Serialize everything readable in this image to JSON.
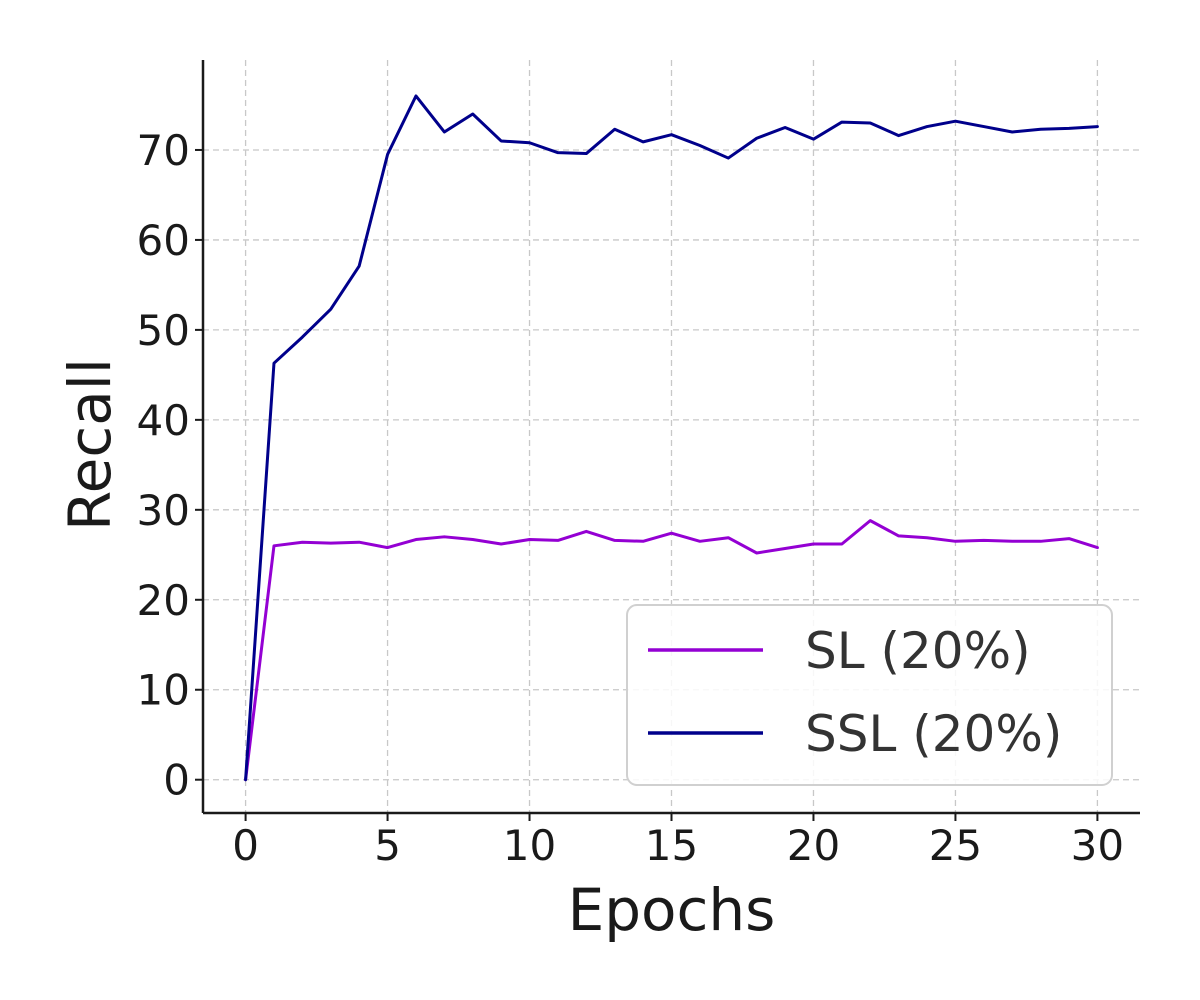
{
  "chart_data": {
    "type": "line",
    "title": "",
    "xlabel": "Epochs",
    "ylabel": "Recall",
    "xlim": [
      -1.5,
      31.5
    ],
    "ylim": [
      -3.7,
      80
    ],
    "x_ticks": [
      0,
      5,
      10,
      15,
      20,
      25,
      30
    ],
    "y_ticks": [
      0,
      10,
      20,
      30,
      40,
      50,
      60,
      70
    ],
    "grid": true,
    "legend_position": "lower-right",
    "x": [
      0,
      1,
      2,
      3,
      4,
      5,
      6,
      7,
      8,
      9,
      10,
      11,
      12,
      13,
      14,
      15,
      16,
      17,
      18,
      19,
      20,
      21,
      22,
      23,
      24,
      25,
      26,
      27,
      28,
      29,
      30
    ],
    "series": [
      {
        "name": "SL (20%)",
        "color": "#9400d3",
        "values": [
          0,
          26.0,
          26.4,
          26.3,
          26.4,
          25.8,
          26.7,
          27.0,
          26.7,
          26.2,
          26.7,
          26.6,
          27.6,
          26.6,
          26.5,
          27.4,
          26.5,
          26.9,
          25.2,
          25.7,
          26.2,
          26.2,
          28.8,
          27.1,
          26.9,
          26.5,
          26.6,
          26.5,
          26.5,
          26.8,
          25.8
        ]
      },
      {
        "name": "SSL (20%)",
        "color": "#00008b",
        "values": [
          0,
          46.3,
          49.2,
          52.3,
          57.1,
          69.5,
          76.0,
          72.0,
          74.0,
          71.0,
          70.8,
          69.7,
          69.6,
          72.3,
          70.9,
          71.7,
          70.5,
          69.1,
          71.3,
          72.5,
          71.2,
          73.1,
          73.0,
          71.6,
          72.6,
          73.2,
          72.6,
          72.0,
          72.3,
          72.4,
          72.6
        ]
      }
    ]
  }
}
